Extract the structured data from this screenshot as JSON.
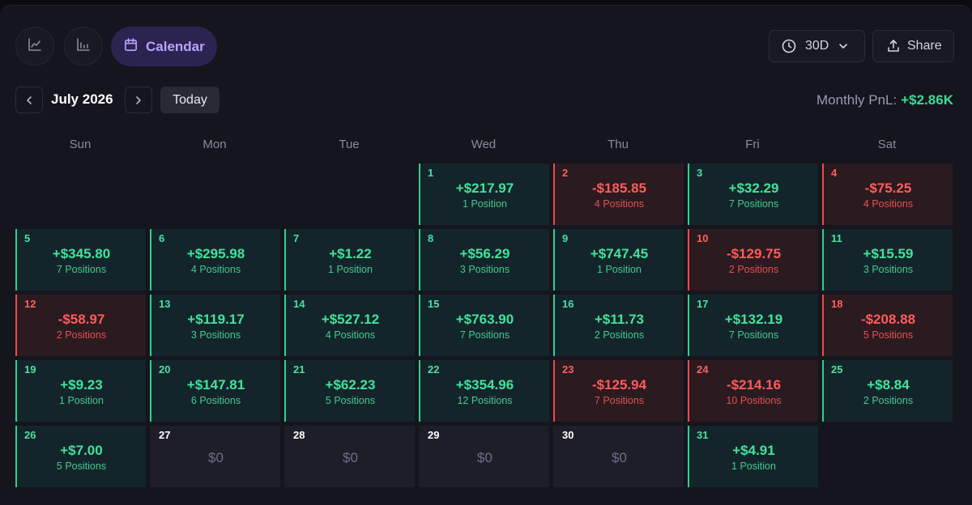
{
  "toolbar": {
    "calendar_label": "Calendar",
    "range_label": "30D",
    "share_label": "Share"
  },
  "month": {
    "label": "July 2026",
    "today_label": "Today",
    "monthly_pnl_label": "Monthly PnL:",
    "monthly_pnl_value": "+$2.86K"
  },
  "weekdays": [
    "Sun",
    "Mon",
    "Tue",
    "Wed",
    "Thu",
    "Fri",
    "Sat"
  ],
  "colors": {
    "positive": "#43e29c",
    "negative": "#ff5c5c",
    "accent": "#b8a4ff"
  },
  "days": [
    {
      "day": "1",
      "amount": "+$217.97",
      "positions": "1 Position",
      "status": "pos"
    },
    {
      "day": "2",
      "amount": "-$185.85",
      "positions": "4 Positions",
      "status": "neg"
    },
    {
      "day": "3",
      "amount": "+$32.29",
      "positions": "7 Positions",
      "status": "pos"
    },
    {
      "day": "4",
      "amount": "-$75.25",
      "positions": "4 Positions",
      "status": "neg"
    },
    {
      "day": "5",
      "amount": "+$345.80",
      "positions": "7 Positions",
      "status": "pos"
    },
    {
      "day": "6",
      "amount": "+$295.98",
      "positions": "4 Positions",
      "status": "pos"
    },
    {
      "day": "7",
      "amount": "+$1.22",
      "positions": "1 Position",
      "status": "pos"
    },
    {
      "day": "8",
      "amount": "+$56.29",
      "positions": "3 Positions",
      "status": "pos"
    },
    {
      "day": "9",
      "amount": "+$747.45",
      "positions": "1 Position",
      "status": "pos"
    },
    {
      "day": "10",
      "amount": "-$129.75",
      "positions": "2 Positions",
      "status": "neg"
    },
    {
      "day": "11",
      "amount": "+$15.59",
      "positions": "3 Positions",
      "status": "pos"
    },
    {
      "day": "12",
      "amount": "-$58.97",
      "positions": "2 Positions",
      "status": "neg"
    },
    {
      "day": "13",
      "amount": "+$119.17",
      "positions": "3 Positions",
      "status": "pos"
    },
    {
      "day": "14",
      "amount": "+$527.12",
      "positions": "4 Positions",
      "status": "pos"
    },
    {
      "day": "15",
      "amount": "+$763.90",
      "positions": "7 Positions",
      "status": "pos"
    },
    {
      "day": "16",
      "amount": "+$11.73",
      "positions": "2 Positions",
      "status": "pos"
    },
    {
      "day": "17",
      "amount": "+$132.19",
      "positions": "7 Positions",
      "status": "pos"
    },
    {
      "day": "18",
      "amount": "-$208.88",
      "positions": "5 Positions",
      "status": "neg"
    },
    {
      "day": "19",
      "amount": "+$9.23",
      "positions": "1 Position",
      "status": "pos"
    },
    {
      "day": "20",
      "amount": "+$147.81",
      "positions": "6 Positions",
      "status": "pos"
    },
    {
      "day": "21",
      "amount": "+$62.23",
      "positions": "5 Positions",
      "status": "pos"
    },
    {
      "day": "22",
      "amount": "+$354.96",
      "positions": "12 Positions",
      "status": "pos"
    },
    {
      "day": "23",
      "amount": "-$125.94",
      "positions": "7 Positions",
      "status": "neg"
    },
    {
      "day": "24",
      "amount": "-$214.16",
      "positions": "10 Positions",
      "status": "neg"
    },
    {
      "day": "25",
      "amount": "+$8.84",
      "positions": "2 Positions",
      "status": "pos"
    },
    {
      "day": "26",
      "amount": "+$7.00",
      "positions": "5 Positions",
      "status": "pos"
    },
    {
      "day": "27",
      "amount": "$0",
      "positions": "",
      "status": "zero"
    },
    {
      "day": "28",
      "amount": "$0",
      "positions": "",
      "status": "zero"
    },
    {
      "day": "29",
      "amount": "$0",
      "positions": "",
      "status": "zero"
    },
    {
      "day": "30",
      "amount": "$0",
      "positions": "",
      "status": "zero"
    },
    {
      "day": "31",
      "amount": "+$4.91",
      "positions": "1 Position",
      "status": "pos"
    }
  ]
}
